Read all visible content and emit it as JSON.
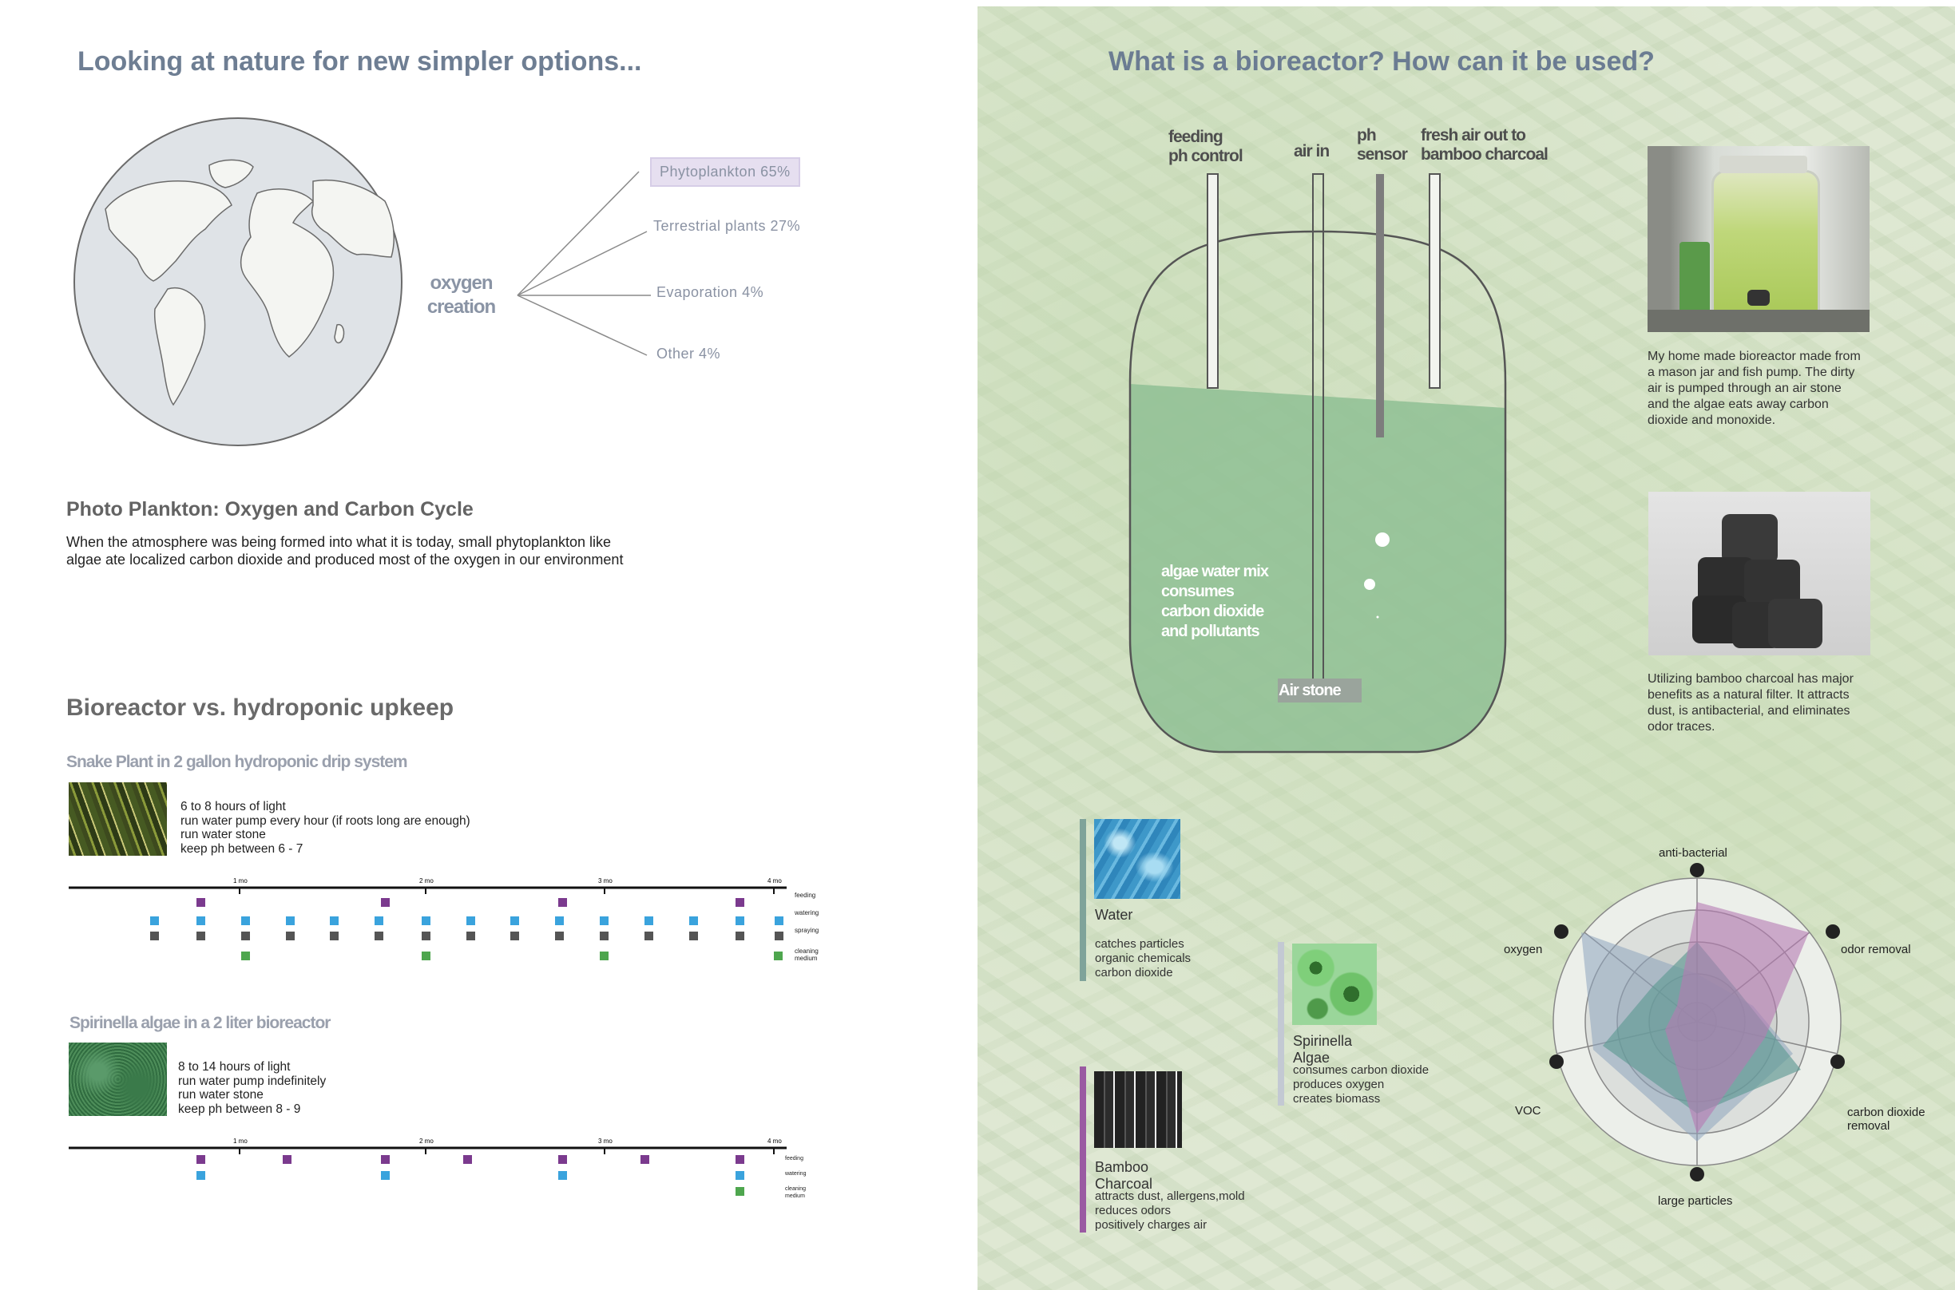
{
  "left": {
    "title": "Looking at nature for new simpler options...",
    "oxygen": {
      "center_line1": "oxygen",
      "center_line2": "creation",
      "sources": [
        "Phytoplankton 65%",
        "Terrestrial plants 27%",
        "Evaporation 4%",
        "Other 4%"
      ]
    },
    "plankton": {
      "heading": "Photo Plankton: Oxygen and Carbon Cycle",
      "text": "When the atmosphere was being formed into what it is today, small phytoplankton like algae ate localized carbon dioxide and produced most of the oxygen in our environment"
    },
    "upkeep": {
      "heading": "Bioreactor vs. hydroponic upkeep",
      "snake": {
        "title": "Snake Plant in 2 gallon hydroponic drip system",
        "lines": [
          "6 to 8 hours of light",
          "run water pump every hour (if roots long are enough)",
          "run water stone",
          "keep ph between 6 - 7"
        ]
      },
      "algae": {
        "title": "Spirinella algae in a 2 liter bioreactor",
        "lines": [
          "8 to 14 hours of light",
          "run water pump indefinitely",
          "run water stone",
          "keep ph between 8 - 9"
        ]
      },
      "months": [
        "1 mo",
        "2 mo",
        "3 mo",
        "4 mo"
      ],
      "legend_snake": [
        "feeding",
        "watering",
        "spraying",
        "cleaning",
        "medium"
      ],
      "legend_algae": [
        "feeding",
        "watering",
        "cleaning",
        "medium"
      ],
      "colors": {
        "feeding": "#7b3a8e",
        "watering": "#3aa3dd",
        "spraying": "#555555",
        "cleaning": "#4ea64e"
      }
    }
  },
  "right": {
    "title": "What is a bioreactor? How can it be used?",
    "tubes": {
      "feeding_1": "feeding",
      "feeding_2": "ph control",
      "air_in": "air in",
      "ph_1": "ph",
      "ph_2": "sensor",
      "fresh_1": "fresh air out to",
      "fresh_2": "bamboo charcoal"
    },
    "mix": [
      "algae water mix",
      "consumes",
      "carbon dioxide",
      "and pollutants"
    ],
    "airstone": "Air stone",
    "jar_caption": "My home made bioreactor made from a mason jar and fish pump. The dirty air is pumped through an air stone and the algae eats away carbon dioxide and monoxide.",
    "charcoal_caption": "Utilizing bamboo charcoal has major benefits as a natural filter. It attracts dust, is antibacterial, and eliminates odor traces.",
    "components": [
      {
        "name": "Water",
        "lines": [
          "catches particles",
          "organic chemicals",
          "carbon dioxide"
        ],
        "color": "#7fa39a"
      },
      {
        "name": "Spirinella Algae",
        "lines": [
          "consumes carbon dioxide",
          "produces oxygen",
          "creates biomass"
        ],
        "color": "#c3c9d3"
      },
      {
        "name": "Bamboo Charcoal",
        "lines": [
          "attracts dust, allergens,mold",
          "reduces odors",
          "positively charges air"
        ],
        "color": "#9a5aa2"
      }
    ],
    "radar": {
      "axes": [
        "anti-bacterial",
        "odor removal",
        "carbon dioxide",
        "removal",
        "large particles",
        "VOC",
        "oxygen"
      ]
    }
  }
}
